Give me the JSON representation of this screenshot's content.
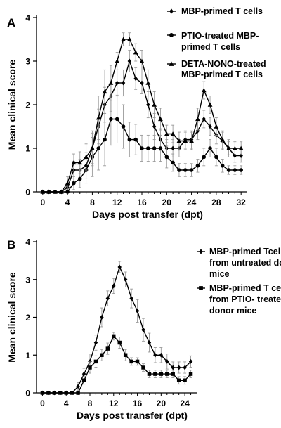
{
  "chart_data": [
    {
      "panel": "A",
      "type": "line",
      "xlabel": "Days post transfer (dpt)",
      "ylabel": "Mean clinical score",
      "xlim": [
        -1,
        33
      ],
      "ylim": [
        0,
        4
      ],
      "xticks": [
        0,
        4,
        8,
        12,
        16,
        20,
        24,
        28,
        32
      ],
      "yticks": [
        0,
        1,
        2,
        3,
        4
      ],
      "grid": false,
      "legend_position": "top-right",
      "x": [
        0,
        1,
        2,
        3,
        4,
        5,
        6,
        7,
        8,
        9,
        10,
        11,
        12,
        13,
        14,
        15,
        16,
        17,
        18,
        19,
        20,
        21,
        22,
        23,
        24,
        25,
        26,
        27,
        28,
        29,
        30,
        31,
        32
      ],
      "series": [
        {
          "name": "MBP-primed T cells",
          "marker": "diamond",
          "values": [
            0,
            0,
            0,
            0,
            0.1,
            0.5,
            0.5,
            0.6,
            1.0,
            1.5,
            2.0,
            2.2,
            2.5,
            2.5,
            3.0,
            2.6,
            2.5,
            2.0,
            1.5,
            1.2,
            1.0,
            1.0,
            1.0,
            1.2,
            1.2,
            1.4,
            1.67,
            1.5,
            1.3,
            1.17,
            1.0,
            0.83,
            0.83
          ],
          "errors": [
            0,
            0,
            0,
            0,
            0.1,
            0.2,
            0.25,
            0.3,
            0.35,
            0.4,
            0.4,
            0.35,
            0.3,
            0.3,
            0.25,
            0.25,
            0.25,
            0.3,
            0.3,
            0.25,
            0.2,
            0.2,
            0.2,
            0.2,
            0.2,
            0.2,
            0.2,
            0.2,
            0.2,
            0.2,
            0.2,
            0.15,
            0.15
          ]
        },
        {
          "name": "PTIO-treated MBP-primed T cells",
          "marker": "circle",
          "values": [
            0,
            0,
            0,
            0,
            0,
            0.2,
            0.3,
            0.5,
            0.8,
            1.0,
            1.2,
            1.67,
            1.67,
            1.5,
            1.2,
            1.2,
            1.0,
            1.0,
            1.0,
            1.0,
            0.8,
            0.67,
            0.5,
            0.5,
            0.5,
            0.6,
            0.8,
            1.0,
            0.8,
            0.6,
            0.5,
            0.5,
            0.5
          ],
          "errors": [
            0,
            0,
            0,
            0,
            0,
            0.15,
            0.2,
            0.3,
            0.45,
            0.5,
            0.6,
            0.6,
            0.55,
            0.5,
            0.4,
            0.35,
            0.3,
            0.3,
            0.3,
            0.3,
            0.25,
            0.2,
            0.15,
            0.15,
            0.15,
            0.15,
            0.2,
            0.2,
            0.2,
            0.15,
            0.1,
            0.1,
            0.1
          ]
        },
        {
          "name": "DETA-NONO-treated MBP-primed T cells",
          "marker": "triangle",
          "values": [
            0,
            0,
            0,
            0,
            0.2,
            0.67,
            0.67,
            0.8,
            1.0,
            1.7,
            2.3,
            2.5,
            3.0,
            3.5,
            3.5,
            3.2,
            3.0,
            2.5,
            2.0,
            1.67,
            1.33,
            1.33,
            1.17,
            1.17,
            1.17,
            1.67,
            2.33,
            2.0,
            1.5,
            1.2,
            1.0,
            1.0,
            1.0
          ],
          "errors": [
            0,
            0,
            0,
            0,
            0.15,
            0.2,
            0.25,
            0.3,
            0.4,
            0.5,
            0.5,
            0.4,
            0.2,
            0.15,
            0.15,
            0.2,
            0.25,
            0.3,
            0.3,
            0.25,
            0.2,
            0.2,
            0.2,
            0.2,
            0.2,
            0.25,
            0.2,
            0.2,
            0.2,
            0.2,
            0.15,
            0.15,
            0.15
          ]
        }
      ]
    },
    {
      "panel": "B",
      "type": "line",
      "xlabel": "Days post transfer (dpt)",
      "ylabel": "Mean clinical score",
      "xlim": [
        -1,
        26
      ],
      "ylim": [
        0,
        4
      ],
      "xticks": [
        0,
        4,
        8,
        12,
        16,
        20,
        24
      ],
      "yticks": [
        0,
        1,
        2,
        3,
        4
      ],
      "grid": false,
      "legend_position": "top-right",
      "x": [
        0,
        1,
        2,
        3,
        4,
        5,
        6,
        7,
        8,
        9,
        10,
        11,
        12,
        13,
        14,
        15,
        16,
        17,
        18,
        19,
        20,
        21,
        22,
        23,
        24,
        25
      ],
      "series": [
        {
          "name": "MBP-primed Tcells from untreated donor mice",
          "marker": "diamond",
          "values": [
            0,
            0,
            0,
            0,
            0,
            0,
            0.17,
            0.5,
            0.83,
            1.33,
            2.0,
            2.5,
            2.83,
            3.33,
            3.0,
            2.5,
            2.17,
            1.67,
            1.33,
            1.0,
            1.0,
            0.83,
            0.67,
            0.67,
            0.67,
            0.83
          ],
          "errors": [
            0,
            0,
            0,
            0,
            0,
            0,
            0.1,
            0.15,
            0.2,
            0.2,
            0.25,
            0.2,
            0.2,
            0.15,
            0.2,
            0.25,
            0.3,
            0.3,
            0.25,
            0.2,
            0.2,
            0.2,
            0.15,
            0.15,
            0.15,
            0.15
          ]
        },
        {
          "name": "MBP-primed T cells from PTIO- treated donor mice",
          "marker": "square",
          "values": [
            0,
            0,
            0,
            0,
            0,
            0,
            0,
            0.33,
            0.67,
            0.83,
            1.0,
            1.17,
            1.5,
            1.33,
            1.0,
            0.83,
            0.83,
            0.67,
            0.5,
            0.5,
            0.5,
            0.5,
            0.5,
            0.33,
            0.33,
            0.5
          ],
          "errors": [
            0,
            0,
            0,
            0,
            0,
            0,
            0,
            0.1,
            0.15,
            0.15,
            0.15,
            0.15,
            0.1,
            0.15,
            0.15,
            0.1,
            0.1,
            0.1,
            0.1,
            0.1,
            0.1,
            0.1,
            0.1,
            0.1,
            0.1,
            0.1
          ]
        }
      ]
    }
  ]
}
